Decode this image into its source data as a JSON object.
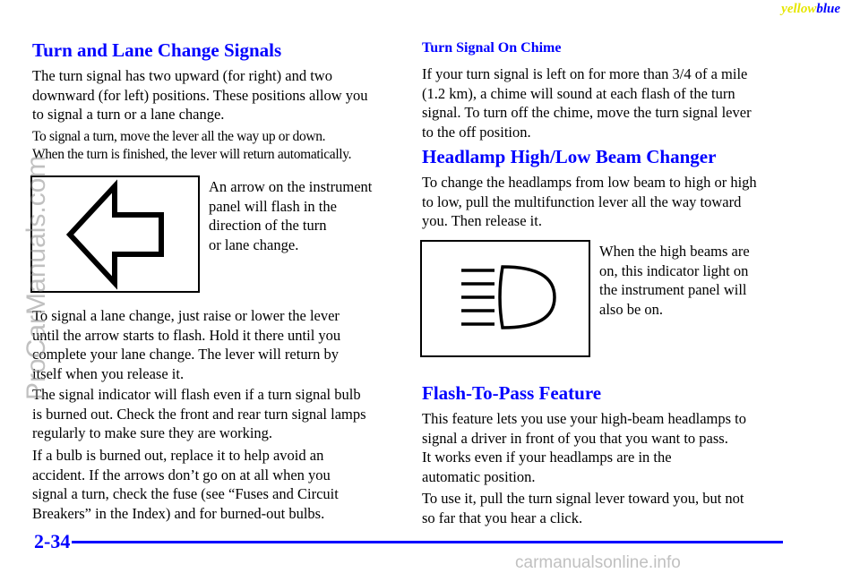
{
  "header": {
    "color_word_1": "yellow",
    "color_word_2": "blue"
  },
  "left": {
    "title": "Turn and Lane Change Signals",
    "p1_lines": [
      "The turn signal has two upward (for right) and two",
      "downward (for left) positions. These positions allow you",
      "to signal a turn or a lane change."
    ],
    "p2_lines": [
      "To signal a turn, move the lever all the way up or down.",
      "When the turn is finished, the lever will return automatically."
    ],
    "arrow_caption_lines": [
      "An arrow on the instrument",
      "panel will flash in the",
      "direction of the turn",
      "or lane change."
    ],
    "p3_lines": [
      "To signal a lane change, just raise or lower the lever",
      "until the arrow starts to flash. Hold it there until you",
      "complete your lane change. The lever will return by",
      "itself when you release it."
    ],
    "p4_lines": [
      "The signal indicator will flash even if a turn signal bulb",
      "is burned out. Check the front and rear turn signal lamps",
      "regularly to make sure they are working."
    ],
    "p5_lines": [
      "If a bulb is burned out, replace it to help avoid an",
      "accident. If the arrows don’t go on at all when you",
      "signal a turn, check the fuse (see “Fuses and Circuit",
      "Breakers” in the Index) and for burned-out bulbs."
    ]
  },
  "right": {
    "chime_title": "Turn Signal On Chime",
    "chime_lines": [
      "If your turn signal is left on for more than 3/4 of a mile",
      "(1.2 km), a chime will sound at each flash of the turn",
      "signal. To turn off the chime, move the turn signal lever",
      "to the off position."
    ],
    "beam_title": "Headlamp High/Low Beam Changer",
    "beam_lines": [
      "To change the headlamps from low beam to high or high",
      "to low, pull the multifunction lever all the way toward",
      "you. Then release it."
    ],
    "beam_caption_lines": [
      "When the high beams are",
      "on, this indicator light on",
      "the instrument panel will",
      "also be on."
    ],
    "flash_title": "Flash-To-Pass Feature",
    "flash_p1_lines": [
      "This feature lets you use your high-beam headlamps to",
      "signal a driver in front of you that you want to pass.",
      "It works even if your headlamps are in the",
      "automatic position."
    ],
    "flash_p2_lines": [
      "To use it, pull the turn signal lever toward you, but not",
      "so far that you hear a click."
    ]
  },
  "icons": {
    "turn_arrow": "left-arrow-outline-icon",
    "high_beam": "high-beam-headlamp-icon"
  },
  "footer": {
    "page_number": "2-34"
  },
  "watermarks": {
    "side": "ProCarManuals.com",
    "bottom": "carmanualsonline.info"
  },
  "colors": {
    "heading": "#0000ff",
    "rule": "#0000ff",
    "yellow_tag": "#e6e600"
  }
}
